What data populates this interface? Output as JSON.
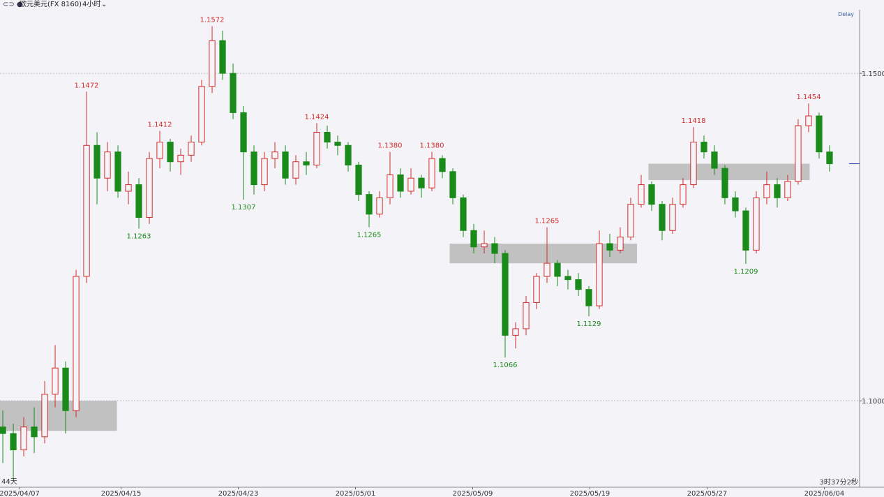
{
  "header": {
    "symbol": "欧元美元(FX 8160)",
    "period": "4小时",
    "delay": "Delay",
    "left_note": "44天",
    "countdown": "3时37分2秒"
  },
  "chart_data": {
    "type": "candlestick",
    "up_color": "#d42a2a",
    "down_color": "#1a8a1a",
    "xlim": [
      -0.27,
      81.87
    ],
    "ylim": [
      1.0868,
      1.1612
    ],
    "yticks": [
      {
        "value": 1.15,
        "label": "1.1500"
      },
      {
        "value": 1.1,
        "label": "1.1000"
      }
    ],
    "xticks": [
      {
        "value": 1.6,
        "label": "2025/04/07"
      },
      {
        "value": 11.3,
        "label": "2025/04/15"
      },
      {
        "value": 22.5,
        "label": "2025/04/23"
      },
      {
        "value": 33.7,
        "label": "2025/05/01"
      },
      {
        "value": 44.9,
        "label": "2025/05/09"
      },
      {
        "value": 56.1,
        "label": "2025/05/19"
      },
      {
        "value": 67.3,
        "label": "2025/05/27"
      },
      {
        "value": 78.5,
        "label": "2025/06/04"
      }
    ],
    "grid": true,
    "ohlc": [
      [
        1.096,
        1.0985,
        1.0905,
        1.095
      ],
      [
        1.095,
        1.0965,
        1.088,
        1.0925
      ],
      [
        1.0925,
        1.0975,
        1.0915,
        1.096
      ],
      [
        1.096,
        1.099,
        1.092,
        1.0945
      ],
      [
        1.0945,
        1.103,
        1.0935,
        1.101
      ],
      [
        1.101,
        1.1085,
        1.099,
        1.105
      ],
      [
        1.105,
        1.106,
        1.095,
        1.0985
      ],
      [
        1.0985,
        1.12,
        1.0975,
        1.119
      ],
      [
        1.119,
        1.1472,
        1.118,
        1.139
      ],
      [
        1.139,
        1.141,
        1.13,
        1.134
      ],
      [
        1.134,
        1.1395,
        1.132,
        1.138
      ],
      [
        1.138,
        1.139,
        1.131,
        1.132
      ],
      [
        1.132,
        1.135,
        1.13,
        1.133
      ],
      [
        1.133,
        1.134,
        1.1263,
        1.128
      ],
      [
        1.128,
        1.138,
        1.127,
        1.137
      ],
      [
        1.137,
        1.1412,
        1.1355,
        1.1395
      ],
      [
        1.1395,
        1.14,
        1.135,
        1.1365
      ],
      [
        1.1365,
        1.1385,
        1.1345,
        1.1375
      ],
      [
        1.1375,
        1.1405,
        1.1365,
        1.1395
      ],
      [
        1.1395,
        1.149,
        1.139,
        1.148
      ],
      [
        1.148,
        1.1572,
        1.147,
        1.155
      ],
      [
        1.155,
        1.1565,
        1.149,
        1.15
      ],
      [
        1.15,
        1.1515,
        1.143,
        1.144
      ],
      [
        1.144,
        1.145,
        1.1307,
        1.138
      ],
      [
        1.138,
        1.139,
        1.1315,
        1.133
      ],
      [
        1.133,
        1.138,
        1.132,
        1.137
      ],
      [
        1.137,
        1.1395,
        1.1355,
        1.138
      ],
      [
        1.138,
        1.139,
        1.133,
        1.134
      ],
      [
        1.134,
        1.1375,
        1.133,
        1.1365
      ],
      [
        1.1365,
        1.138,
        1.1345,
        1.136
      ],
      [
        1.136,
        1.1424,
        1.1355,
        1.141
      ],
      [
        1.141,
        1.142,
        1.1385,
        1.1395
      ],
      [
        1.1395,
        1.1405,
        1.1375,
        1.139
      ],
      [
        1.139,
        1.1395,
        1.135,
        1.136
      ],
      [
        1.136,
        1.1365,
        1.1305,
        1.1315
      ],
      [
        1.1315,
        1.132,
        1.1265,
        1.1285
      ],
      [
        1.1285,
        1.132,
        1.128,
        1.131
      ],
      [
        1.131,
        1.138,
        1.13,
        1.1345
      ],
      [
        1.1345,
        1.1355,
        1.131,
        1.132
      ],
      [
        1.132,
        1.1355,
        1.1315,
        1.134
      ],
      [
        1.134,
        1.1345,
        1.131,
        1.1325
      ],
      [
        1.1325,
        1.138,
        1.132,
        1.137
      ],
      [
        1.137,
        1.1375,
        1.134,
        1.135
      ],
      [
        1.135,
        1.1355,
        1.13,
        1.131
      ],
      [
        1.131,
        1.1315,
        1.125,
        1.126
      ],
      [
        1.126,
        1.127,
        1.1225,
        1.1235
      ],
      [
        1.1235,
        1.126,
        1.1225,
        1.124
      ],
      [
        1.124,
        1.125,
        1.121,
        1.1225
      ],
      [
        1.1225,
        1.123,
        1.1066,
        1.11
      ],
      [
        1.11,
        1.112,
        1.108,
        1.111
      ],
      [
        1.111,
        1.116,
        1.11,
        1.115
      ],
      [
        1.115,
        1.1195,
        1.114,
        1.119
      ],
      [
        1.119,
        1.1265,
        1.118,
        1.121
      ],
      [
        1.121,
        1.1215,
        1.1175,
        1.119
      ],
      [
        1.119,
        1.12,
        1.117,
        1.1185
      ],
      [
        1.1185,
        1.1195,
        1.116,
        1.117
      ],
      [
        1.117,
        1.1175,
        1.1129,
        1.1145
      ],
      [
        1.1145,
        1.126,
        1.114,
        1.124
      ],
      [
        1.124,
        1.1255,
        1.122,
        1.123
      ],
      [
        1.123,
        1.1265,
        1.1225,
        1.125
      ],
      [
        1.125,
        1.131,
        1.1245,
        1.13
      ],
      [
        1.13,
        1.1345,
        1.1295,
        1.133
      ],
      [
        1.133,
        1.1335,
        1.129,
        1.13
      ],
      [
        1.13,
        1.1305,
        1.1245,
        1.126
      ],
      [
        1.126,
        1.131,
        1.1255,
        1.13
      ],
      [
        1.13,
        1.134,
        1.1295,
        1.133
      ],
      [
        1.133,
        1.1418,
        1.1325,
        1.1395
      ],
      [
        1.1395,
        1.1405,
        1.137,
        1.138
      ],
      [
        1.138,
        1.139,
        1.1345,
        1.1355
      ],
      [
        1.1355,
        1.136,
        1.13,
        1.131
      ],
      [
        1.131,
        1.132,
        1.128,
        1.129
      ],
      [
        1.129,
        1.1295,
        1.1209,
        1.123
      ],
      [
        1.123,
        1.132,
        1.1225,
        1.131
      ],
      [
        1.131,
        1.135,
        1.13,
        1.133
      ],
      [
        1.133,
        1.134,
        1.1295,
        1.131
      ],
      [
        1.131,
        1.1345,
        1.1305,
        1.1335
      ],
      [
        1.1335,
        1.143,
        1.133,
        1.142
      ],
      [
        1.142,
        1.1454,
        1.141,
        1.1435
      ],
      [
        1.1435,
        1.144,
        1.137,
        1.138
      ],
      [
        1.138,
        1.139,
        1.135,
        1.1362
      ]
    ],
    "annotations": [
      {
        "label": "1.1472",
        "value": 1.1472,
        "index": 8,
        "kind": "high"
      },
      {
        "label": "1.1263",
        "value": 1.1263,
        "index": 13,
        "kind": "low"
      },
      {
        "label": "1.1412",
        "value": 1.1412,
        "index": 15,
        "kind": "high"
      },
      {
        "label": "1.1572",
        "value": 1.1572,
        "index": 20,
        "kind": "high"
      },
      {
        "label": "1.1307",
        "value": 1.1307,
        "index": 23,
        "kind": "low"
      },
      {
        "label": "1.1424",
        "value": 1.1424,
        "index": 30,
        "kind": "high"
      },
      {
        "label": "1.1265",
        "value": 1.1265,
        "index": 35,
        "kind": "low"
      },
      {
        "label": "1.1380",
        "value": 1.138,
        "index": 37,
        "kind": "high"
      },
      {
        "label": "1.1380",
        "value": 1.138,
        "index": 41,
        "kind": "high"
      },
      {
        "label": "1.1066",
        "value": 1.1066,
        "index": 48,
        "kind": "low"
      },
      {
        "label": "1.1265",
        "value": 1.1265,
        "index": 52,
        "kind": "high"
      },
      {
        "label": "1.1129",
        "value": 1.1129,
        "index": 56,
        "kind": "low"
      },
      {
        "label": "1.1418",
        "value": 1.1418,
        "index": 66,
        "kind": "high"
      },
      {
        "label": "1.1209",
        "value": 1.1209,
        "index": 71,
        "kind": "low"
      },
      {
        "label": "1.1454",
        "value": 1.1454,
        "index": 77,
        "kind": "high"
      }
    ],
    "zones": [
      {
        "x": [
          -0.27,
          10.9
        ],
        "y": [
          1.0954,
          1.1
        ]
      },
      {
        "x": [
          42.7,
          60.6
        ],
        "y": [
          1.121,
          1.124
        ]
      },
      {
        "x": [
          61.7,
          77.1
        ],
        "y": [
          1.1337,
          1.1362
        ]
      }
    ]
  }
}
